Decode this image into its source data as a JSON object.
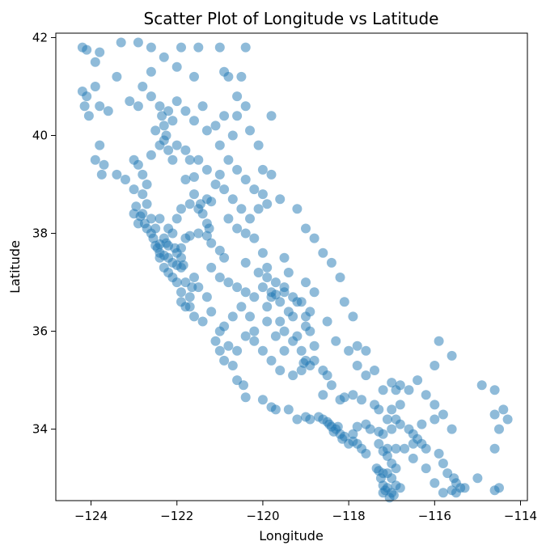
{
  "chart_data": {
    "type": "scatter",
    "title": "Scatter Plot of Longitude vs Latitude",
    "xlabel": "Longitude",
    "ylabel": "Latitude",
    "xlim": [
      -124.82,
      -113.84
    ],
    "ylim": [
      32.54,
      42.09
    ],
    "xticks": [
      -124,
      -122,
      -120,
      -118,
      -116,
      -114
    ],
    "xtick_labels": [
      "−124",
      "−122",
      "−120",
      "−118",
      "−116",
      "−114"
    ],
    "yticks": [
      34,
      36,
      38,
      40,
      42
    ],
    "ytick_labels": [
      "34",
      "36",
      "38",
      "40",
      "42"
    ],
    "grid": false,
    "legend": "none",
    "marker_color": "#1f77b4",
    "marker_alpha": 0.5,
    "points": [
      [
        -124.2,
        41.8
      ],
      [
        -124.1,
        41.75
      ],
      [
        -123.9,
        41.5
      ],
      [
        -123.8,
        41.7
      ],
      [
        -123.3,
        41.9
      ],
      [
        -122.9,
        41.9
      ],
      [
        -122.6,
        41.8
      ],
      [
        -122.3,
        41.6
      ],
      [
        -121.9,
        41.8
      ],
      [
        -121.5,
        41.8
      ],
      [
        -121.0,
        41.8
      ],
      [
        -120.4,
        41.8
      ],
      [
        -120.5,
        41.2
      ],
      [
        -120.9,
        41.3
      ],
      [
        -121.6,
        41.2
      ],
      [
        -122.0,
        41.4
      ],
      [
        -122.6,
        41.3
      ],
      [
        -122.8,
        41.0
      ],
      [
        -123.4,
        41.2
      ],
      [
        -123.9,
        41.0
      ],
      [
        -124.1,
        40.8
      ],
      [
        -124.15,
        40.6
      ],
      [
        -124.05,
        40.4
      ],
      [
        -124.2,
        40.9
      ],
      [
        -123.8,
        40.6
      ],
      [
        -123.6,
        40.5
      ],
      [
        -123.1,
        40.7
      ],
      [
        -122.9,
        40.6
      ],
      [
        -122.6,
        40.8
      ],
      [
        -122.4,
        40.6
      ],
      [
        -122.35,
        40.4
      ],
      [
        -122.3,
        40.2
      ],
      [
        -122.25,
        40.0
      ],
      [
        -122.1,
        40.3
      ],
      [
        -121.8,
        40.5
      ],
      [
        -121.4,
        40.6
      ],
      [
        -120.9,
        40.4
      ],
      [
        -120.6,
        40.4
      ],
      [
        -120.7,
        40.0
      ],
      [
        -121.1,
        40.2
      ],
      [
        -123.8,
        39.8
      ],
      [
        -123.9,
        39.5
      ],
      [
        -123.75,
        39.2
      ],
      [
        -123.7,
        39.4
      ],
      [
        -123.4,
        39.2
      ],
      [
        -123.2,
        39.1
      ],
      [
        -123.0,
        38.9
      ],
      [
        -122.8,
        38.8
      ],
      [
        -122.7,
        38.6
      ],
      [
        -122.8,
        38.4
      ],
      [
        -123.0,
        38.4
      ],
      [
        -122.9,
        38.2
      ],
      [
        -122.6,
        38.3
      ],
      [
        -122.4,
        38.3
      ],
      [
        -122.5,
        38.1
      ],
      [
        -122.2,
        38.1
      ],
      [
        -122.1,
        38.0
      ],
      [
        -122.3,
        37.9
      ],
      [
        -122.25,
        37.8
      ],
      [
        -122.2,
        37.75
      ],
      [
        -122.4,
        37.78
      ],
      [
        -122.45,
        37.7
      ],
      [
        -122.4,
        37.6
      ],
      [
        -122.3,
        37.55
      ],
      [
        -122.2,
        37.5
      ],
      [
        -122.1,
        37.4
      ],
      [
        -122.0,
        37.35
      ],
      [
        -121.9,
        37.3
      ],
      [
        -121.85,
        37.35
      ],
      [
        -121.9,
        37.5
      ],
      [
        -122.0,
        37.6
      ],
      [
        -122.05,
        37.7
      ],
      [
        -121.9,
        37.7
      ],
      [
        -121.8,
        37.9
      ],
      [
        -121.7,
        37.95
      ],
      [
        -121.5,
        38.0
      ],
      [
        -121.3,
        37.95
      ],
      [
        -121.2,
        37.8
      ],
      [
        -121.0,
        37.65
      ],
      [
        -120.9,
        37.5
      ],
      [
        -121.5,
        38.5
      ],
      [
        -121.45,
        38.6
      ],
      [
        -121.3,
        38.7
      ],
      [
        -121.2,
        38.65
      ],
      [
        -121.4,
        38.4
      ],
      [
        -121.3,
        38.2
      ],
      [
        -121.25,
        38.1
      ],
      [
        -121.6,
        38.8
      ],
      [
        -121.7,
        38.6
      ],
      [
        -121.9,
        38.5
      ],
      [
        -122.0,
        38.3
      ],
      [
        -121.8,
        39.1
      ],
      [
        -121.6,
        39.15
      ],
      [
        -121.7,
        39.5
      ],
      [
        -121.8,
        39.7
      ],
      [
        -122.0,
        39.8
      ],
      [
        -122.2,
        39.7
      ],
      [
        -122.1,
        39.5
      ],
      [
        -121.5,
        39.5
      ],
      [
        -121.3,
        39.3
      ],
      [
        -121.0,
        39.2
      ],
      [
        -121.1,
        39.0
      ],
      [
        -120.9,
        38.9
      ],
      [
        -120.7,
        38.7
      ],
      [
        -120.5,
        38.5
      ],
      [
        -120.3,
        38.3
      ],
      [
        -120.8,
        38.3
      ],
      [
        -120.6,
        38.1
      ],
      [
        -120.4,
        38.0
      ],
      [
        -120.2,
        37.9
      ],
      [
        -120.0,
        37.6
      ],
      [
        -120.4,
        37.4
      ],
      [
        -120.1,
        37.2
      ],
      [
        -119.8,
        36.8
      ],
      [
        -119.7,
        36.75
      ],
      [
        -119.8,
        36.7
      ],
      [
        -119.9,
        36.5
      ],
      [
        -119.6,
        36.6
      ],
      [
        -119.4,
        36.4
      ],
      [
        -119.3,
        36.3
      ],
      [
        -119.6,
        36.2
      ],
      [
        -119.5,
        36.0
      ],
      [
        -119.3,
        35.8
      ],
      [
        -119.1,
        35.6
      ],
      [
        -119.0,
        35.4
      ],
      [
        -119.05,
        35.35
      ],
      [
        -118.9,
        35.3
      ],
      [
        -118.8,
        35.4
      ],
      [
        -118.6,
        35.2
      ],
      [
        -118.5,
        35.1
      ],
      [
        -118.4,
        34.9
      ],
      [
        -118.6,
        34.7
      ],
      [
        -118.2,
        34.6
      ],
      [
        -118.1,
        34.65
      ],
      [
        -117.9,
        34.7
      ],
      [
        -117.7,
        34.6
      ],
      [
        -117.4,
        34.5
      ],
      [
        -117.3,
        34.4
      ],
      [
        -117.1,
        34.2
      ],
      [
        -117.0,
        34.0
      ],
      [
        -118.25,
        34.05
      ],
      [
        -118.3,
        34.0
      ],
      [
        -118.4,
        34.05
      ],
      [
        -118.45,
        34.1
      ],
      [
        -118.5,
        34.15
      ],
      [
        -118.35,
        33.95
      ],
      [
        -118.2,
        33.9
      ],
      [
        -118.1,
        33.85
      ],
      [
        -118.15,
        33.8
      ],
      [
        -118.0,
        33.7
      ],
      [
        -117.9,
        33.75
      ],
      [
        -117.8,
        33.7
      ],
      [
        -117.7,
        33.6
      ],
      [
        -117.6,
        33.5
      ],
      [
        -117.9,
        33.9
      ],
      [
        -117.8,
        34.05
      ],
      [
        -117.6,
        34.1
      ],
      [
        -117.5,
        34.0
      ],
      [
        -117.3,
        33.95
      ],
      [
        -117.2,
        33.9
      ],
      [
        -118.6,
        34.2
      ],
      [
        -118.7,
        34.25
      ],
      [
        -118.9,
        34.2
      ],
      [
        -119.0,
        34.25
      ],
      [
        -119.2,
        34.2
      ],
      [
        -119.4,
        34.4
      ],
      [
        -119.7,
        34.4
      ],
      [
        -119.8,
        34.45
      ],
      [
        -120.0,
        34.6
      ],
      [
        -120.4,
        34.65
      ],
      [
        -120.45,
        34.9
      ],
      [
        -120.6,
        35.0
      ],
      [
        -120.7,
        35.3
      ],
      [
        -120.9,
        35.4
      ],
      [
        -121.0,
        35.6
      ],
      [
        -121.1,
        35.8
      ],
      [
        -121.8,
        36.5
      ],
      [
        -121.9,
        36.6
      ],
      [
        -121.7,
        36.7
      ],
      [
        -121.65,
        36.9
      ],
      [
        -121.8,
        37.0
      ],
      [
        -122.0,
        37.0
      ],
      [
        -121.6,
        37.1
      ],
      [
        -121.5,
        36.9
      ],
      [
        -121.3,
        36.7
      ],
      [
        -121.2,
        36.4
      ],
      [
        -120.9,
        36.1
      ],
      [
        -120.7,
        36.3
      ],
      [
        -120.5,
        36.5
      ],
      [
        -120.3,
        36.3
      ],
      [
        -120.2,
        36.0
      ],
      [
        -119.9,
        36.2
      ],
      [
        -119.7,
        35.9
      ],
      [
        -119.5,
        35.6
      ],
      [
        -119.2,
        35.9
      ],
      [
        -119.0,
        36.1
      ],
      [
        -118.9,
        36.4
      ],
      [
        -119.2,
        36.6
      ],
      [
        -119.5,
        36.9
      ],
      [
        -119.9,
        37.3
      ],
      [
        -117.2,
        32.7
      ],
      [
        -117.15,
        32.75
      ],
      [
        -117.1,
        32.8
      ],
      [
        -117.0,
        32.7
      ],
      [
        -116.95,
        32.65
      ],
      [
        -117.05,
        32.6
      ],
      [
        -117.2,
        32.85
      ],
      [
        -117.25,
        33.0
      ],
      [
        -117.3,
        33.15
      ],
      [
        -117.35,
        33.2
      ],
      [
        -117.2,
        33.1
      ],
      [
        -117.1,
        33.1
      ],
      [
        -117.0,
        33.0
      ],
      [
        -116.9,
        32.85
      ],
      [
        -116.8,
        32.8
      ],
      [
        -116.9,
        33.2
      ],
      [
        -117.0,
        33.3
      ],
      [
        -117.1,
        33.45
      ],
      [
        -117.2,
        33.55
      ],
      [
        -117.3,
        33.7
      ],
      [
        -117.1,
        33.6
      ],
      [
        -116.9,
        33.6
      ],
      [
        -116.7,
        33.6
      ],
      [
        -116.5,
        33.7
      ],
      [
        -116.3,
        33.7
      ],
      [
        -116.2,
        33.6
      ],
      [
        -116.4,
        33.8
      ],
      [
        -116.5,
        33.9
      ],
      [
        -116.6,
        34.0
      ],
      [
        -116.8,
        34.1
      ],
      [
        -116.9,
        34.2
      ],
      [
        -117.0,
        34.4
      ],
      [
        -116.8,
        34.5
      ],
      [
        -116.3,
        34.1
      ],
      [
        -116.0,
        34.2
      ],
      [
        -115.5,
        32.9
      ],
      [
        -115.4,
        32.8
      ],
      [
        -115.6,
        32.75
      ],
      [
        -115.5,
        32.7
      ],
      [
        -115.55,
        33.0
      ],
      [
        -115.7,
        33.1
      ],
      [
        -115.8,
        33.3
      ],
      [
        -115.9,
        33.5
      ],
      [
        -115.3,
        32.8
      ],
      [
        -115.0,
        33.0
      ],
      [
        -114.6,
        32.75
      ],
      [
        -114.5,
        32.8
      ],
      [
        -114.6,
        33.6
      ],
      [
        -114.5,
        34.0
      ],
      [
        -114.6,
        34.3
      ],
      [
        -114.6,
        34.8
      ],
      [
        -114.4,
        34.4
      ],
      [
        -114.3,
        34.2
      ],
      [
        -114.9,
        34.9
      ],
      [
        -115.6,
        35.5
      ],
      [
        -115.9,
        35.8
      ],
      [
        -116.0,
        35.3
      ],
      [
        -116.4,
        35.0
      ],
      [
        -116.8,
        34.9
      ],
      [
        -117.0,
        34.95
      ],
      [
        -117.4,
        35.2
      ],
      [
        -117.6,
        35.6
      ],
      [
        -117.8,
        35.7
      ],
      [
        -117.9,
        36.3
      ],
      [
        -118.1,
        36.6
      ],
      [
        -118.2,
        37.1
      ],
      [
        -118.4,
        37.4
      ],
      [
        -118.6,
        37.6
      ],
      [
        -118.8,
        37.9
      ],
      [
        -119.0,
        38.1
      ],
      [
        -119.2,
        38.5
      ],
      [
        -119.6,
        38.7
      ],
      [
        -119.8,
        39.2
      ],
      [
        -120.0,
        39.3
      ],
      [
        -120.1,
        39.8
      ],
      [
        -120.3,
        40.1
      ],
      [
        -120.4,
        40.6
      ],
      [
        -120.6,
        40.8
      ],
      [
        -120.8,
        41.2
      ],
      [
        -119.8,
        40.4
      ],
      [
        -119.5,
        37.5
      ],
      [
        -119.4,
        37.2
      ],
      [
        -119.0,
        37.0
      ],
      [
        -118.8,
        36.8
      ],
      [
        -118.5,
        36.2
      ],
      [
        -118.3,
        35.8
      ],
      [
        -118.0,
        35.6
      ],
      [
        -117.8,
        35.3
      ],
      [
        -117.6,
        35.1
      ],
      [
        -117.2,
        34.8
      ],
      [
        -116.9,
        34.8
      ],
      [
        -116.6,
        34.8
      ],
      [
        -116.2,
        34.7
      ],
      [
        -116.0,
        34.5
      ],
      [
        -115.8,
        34.3
      ],
      [
        -115.6,
        34.0
      ],
      [
        -116.5,
        33.4
      ],
      [
        -116.2,
        33.2
      ],
      [
        -116.0,
        32.9
      ],
      [
        -115.8,
        32.7
      ],
      [
        -122.7,
        39.0
      ],
      [
        -122.8,
        39.2
      ],
      [
        -122.9,
        39.4
      ],
      [
        -123.0,
        39.5
      ],
      [
        -122.6,
        39.6
      ],
      [
        -122.4,
        39.8
      ],
      [
        -122.3,
        39.9
      ],
      [
        -122.5,
        40.1
      ],
      [
        -122.2,
        40.5
      ],
      [
        -122.0,
        40.7
      ],
      [
        -121.6,
        40.3
      ],
      [
        -121.3,
        40.1
      ],
      [
        -121.0,
        39.8
      ],
      [
        -120.8,
        39.5
      ],
      [
        -120.6,
        39.3
      ],
      [
        -120.4,
        39.1
      ],
      [
        -120.2,
        38.9
      ],
      [
        -120.0,
        38.8
      ],
      [
        -119.9,
        38.6
      ],
      [
        -120.1,
        38.5
      ],
      [
        -121.2,
        37.3
      ],
      [
        -121.0,
        37.1
      ],
      [
        -120.8,
        37.0
      ],
      [
        -120.6,
        36.9
      ],
      [
        -120.4,
        36.8
      ],
      [
        -120.2,
        36.7
      ],
      [
        -120.0,
        36.9
      ],
      [
        -119.9,
        37.1
      ],
      [
        -119.7,
        37.0
      ],
      [
        -119.5,
        36.8
      ],
      [
        -119.3,
        36.7
      ],
      [
        -119.1,
        36.6
      ],
      [
        -119.0,
        36.3
      ],
      [
        -118.9,
        36.0
      ],
      [
        -118.8,
        35.7
      ],
      [
        -119.1,
        35.2
      ],
      [
        -119.3,
        35.1
      ],
      [
        -119.6,
        35.2
      ],
      [
        -119.8,
        35.4
      ],
      [
        -120.0,
        35.6
      ],
      [
        -120.2,
        35.8
      ],
      [
        -120.4,
        35.9
      ],
      [
        -120.6,
        35.6
      ],
      [
        -120.8,
        35.7
      ],
      [
        -121.0,
        36.0
      ],
      [
        -121.4,
        36.2
      ],
      [
        -121.6,
        36.3
      ],
      [
        -121.7,
        36.5
      ],
      [
        -121.9,
        36.8
      ],
      [
        -122.1,
        37.1
      ],
      [
        -122.2,
        37.2
      ],
      [
        -122.3,
        37.3
      ],
      [
        -122.4,
        37.5
      ],
      [
        -122.5,
        37.75
      ],
      [
        -122.55,
        37.9
      ],
      [
        -122.6,
        38.0
      ],
      [
        -122.7,
        38.1
      ],
      [
        -122.75,
        38.2
      ],
      [
        -122.85,
        38.35
      ],
      [
        -122.95,
        38.55
      ]
    ]
  }
}
